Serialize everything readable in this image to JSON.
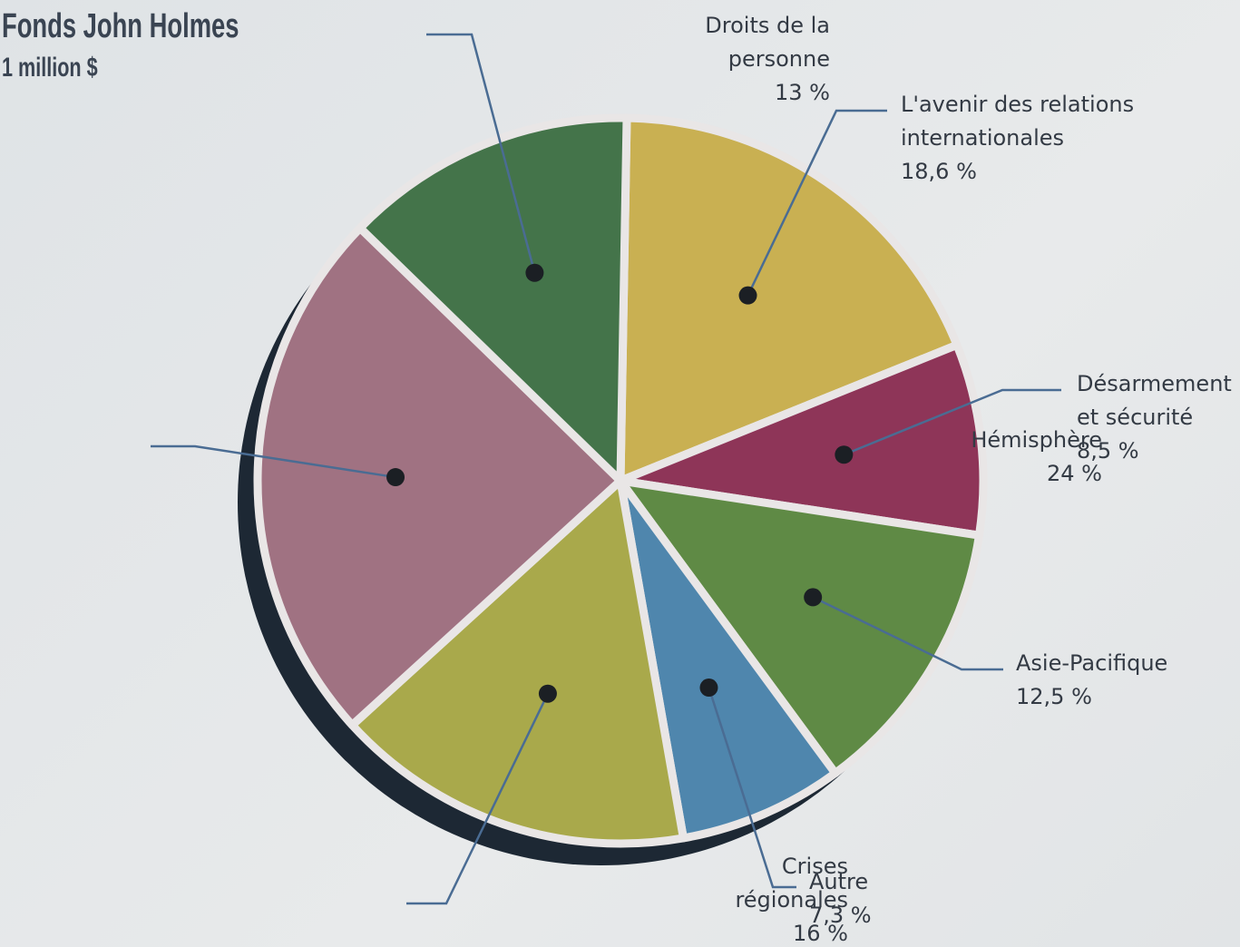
{
  "chart_data": {
    "type": "pie",
    "title": "Fonds John Holmes",
    "subtitle": "1 million $",
    "categories": [
      "L'avenir des relations internationales",
      "Désarmement et sécurité",
      "Asie-Pacifique",
      "Autre",
      "Crises régionales",
      "Hémisphère",
      "Droits de la personne"
    ],
    "values": [
      18.6,
      8.5,
      12.5,
      7.3,
      16,
      24,
      13
    ],
    "value_labels": [
      "18,6 %",
      "8,5 %",
      "12,5 %",
      "7,3 %",
      "16 %",
      "24 %",
      "13 %"
    ],
    "colors": [
      "#c9b052",
      "#8e3558",
      "#5f8a45",
      "#4f86ad",
      "#a9a94b",
      "#a07282",
      "#44744a"
    ]
  }
}
